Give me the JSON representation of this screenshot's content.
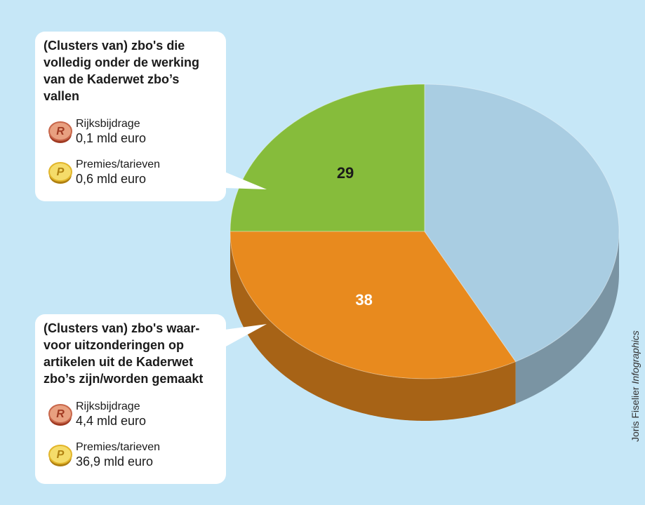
{
  "chart_data": {
    "type": "pie",
    "categories": [
      null,
      null,
      null
    ],
    "series": [
      {
        "name": null,
        "values": [
          29,
          38,
          49
        ],
        "colors": [
          "#86bc3b",
          "#e88a1e",
          "#a9cde2"
        ]
      }
    ],
    "value_labels": [
      "29",
      "38",
      null
    ],
    "label_colors": [
      "#1a1a1a",
      "#ffffff",
      null
    ],
    "callouts": [
      {
        "title": [
          "(Clusters van) zbo's die",
          "volledig onder de werking",
          "van de Kaderwet zbo’s",
          "vallen"
        ],
        "items": [
          {
            "icon": "R",
            "label": "Rijksbijdrage",
            "amount": "0,1 mld euro"
          },
          {
            "icon": "P",
            "label": "Premies/tarieven",
            "amount": "0,6 mld euro"
          }
        ]
      },
      {
        "title": [
          "(Clusters van) zbo's waar-",
          "voor uitzonderingen op",
          "artikelen uit de Kaderwet",
          "zbo’s zijn/worden gemaakt"
        ],
        "items": [
          {
            "icon": "R",
            "label": "Rijksbijdrage",
            "amount": "4,4 mld euro"
          },
          {
            "icon": "P",
            "label": "Premies/tarieven",
            "amount": "36,9 mld euro"
          }
        ]
      }
    ],
    "credit": {
      "name": "Joris Fiselier",
      "suffix": "Infographics"
    }
  }
}
